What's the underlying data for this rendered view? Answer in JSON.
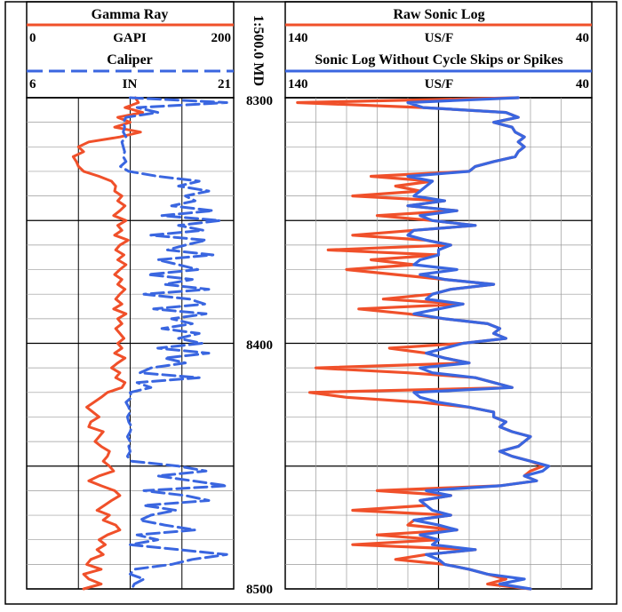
{
  "colors": {
    "gamma": "#f0502a",
    "caliper": "#3a66e0",
    "raw_sonic": "#f0502a",
    "clean_sonic": "#3a66e0",
    "grid_major": "#000000",
    "grid_minor": "#9a9a9a",
    "frame": "#000000"
  },
  "depth_track": {
    "label": "1:500.0 MD",
    "ticks": [
      "8300",
      "8400",
      "8500"
    ]
  },
  "headers": {
    "left": {
      "curve1": {
        "name": "Gamma Ray",
        "unit": "GAPI",
        "min": "0",
        "max": "200",
        "line_style": "solid"
      },
      "curve2": {
        "name": "Caliper",
        "unit": "IN",
        "min": "6",
        "max": "21",
        "line_style": "dashed"
      }
    },
    "right": {
      "curve1": {
        "name": "Raw Sonic Log",
        "unit": "US/F",
        "min": "140",
        "max": "40",
        "line_style": "solid"
      },
      "curve2": {
        "name": "Sonic Log Without Cycle Skips or Spikes",
        "unit": "US/F",
        "min": "140",
        "max": "40",
        "line_style": "solid"
      }
    }
  },
  "chart_data": [
    {
      "type": "line",
      "track": "left",
      "orientation": "vertical-depth",
      "depth_range": [
        8300,
        8500
      ],
      "grid": true,
      "series": [
        {
          "name": "Gamma Ray",
          "unit": "GAPI",
          "scale": [
            0,
            200
          ],
          "depth": [
            8300,
            8302,
            8304,
            8306,
            8308,
            8310,
            8312,
            8314,
            8316,
            8318,
            8320,
            8322,
            8324,
            8326,
            8328,
            8330,
            8332,
            8334,
            8336,
            8338,
            8340,
            8342,
            8344,
            8346,
            8348,
            8350,
            8352,
            8354,
            8356,
            8358,
            8360,
            8362,
            8364,
            8366,
            8368,
            8370,
            8372,
            8374,
            8376,
            8378,
            8380,
            8382,
            8384,
            8386,
            8388,
            8390,
            8392,
            8394,
            8396,
            8398,
            8400,
            8402,
            8404,
            8406,
            8408,
            8410,
            8412,
            8414,
            8416,
            8418,
            8420,
            8422,
            8424,
            8426,
            8428,
            8430,
            8432,
            8434,
            8436,
            8438,
            8440,
            8442,
            8444,
            8446,
            8448,
            8450,
            8452,
            8454,
            8456,
            8458,
            8460,
            8462,
            8464,
            8466,
            8468,
            8470,
            8472,
            8474,
            8476,
            8478,
            8480,
            8482,
            8484,
            8486,
            8488,
            8490,
            8492,
            8494,
            8496,
            8498,
            8500
          ],
          "values": [
            105,
            108,
            95,
            112,
            88,
            100,
            85,
            110,
            90,
            60,
            50,
            55,
            45,
            48,
            50,
            55,
            70,
            82,
            86,
            85,
            92,
            88,
            95,
            90,
            84,
            96,
            88,
            92,
            85,
            98,
            90,
            86,
            94,
            88,
            96,
            90,
            85,
            92,
            88,
            95,
            90,
            86,
            92,
            84,
            96,
            88,
            92,
            86,
            90,
            94,
            88,
            92,
            85,
            95,
            88,
            82,
            90,
            86,
            95,
            92,
            78,
            72,
            65,
            58,
            64,
            70,
            62,
            60,
            74,
            70,
            66,
            72,
            80,
            78,
            74,
            80,
            84,
            70,
            60,
            72,
            85,
            90,
            82,
            75,
            68,
            80,
            74,
            86,
            90,
            78,
            70,
            76,
            68,
            74,
            62,
            58,
            72,
            55,
            60,
            72,
            55
          ]
        },
        {
          "name": "Caliper",
          "unit": "IN",
          "scale": [
            6,
            21
          ],
          "depth": [
            8300,
            8302,
            8304,
            8306,
            8308,
            8310,
            8312,
            8314,
            8316,
            8318,
            8320,
            8322,
            8324,
            8326,
            8328,
            8330,
            8332,
            8334,
            8336,
            8338,
            8340,
            8342,
            8344,
            8346,
            8348,
            8350,
            8352,
            8354,
            8356,
            8358,
            8360,
            8362,
            8364,
            8366,
            8368,
            8370,
            8372,
            8374,
            8376,
            8378,
            8380,
            8382,
            8384,
            8386,
            8388,
            8390,
            8392,
            8394,
            8396,
            8398,
            8400,
            8402,
            8404,
            8406,
            8408,
            8410,
            8412,
            8414,
            8416,
            8418,
            8420,
            8422,
            8424,
            8426,
            8428,
            8430,
            8432,
            8434,
            8436,
            8438,
            8440,
            8442,
            8444,
            8446,
            8448,
            8450,
            8452,
            8454,
            8456,
            8458,
            8460,
            8462,
            8464,
            8466,
            8468,
            8470,
            8472,
            8474,
            8476,
            8478,
            8480,
            8482,
            8484,
            8486,
            8488,
            8490,
            8492,
            8494,
            8496,
            8498,
            8500
          ],
          "values": [
            13.5,
            20.5,
            14,
            15.5,
            13.2,
            13,
            13.1,
            13,
            13.2,
            12.9,
            13,
            13.1,
            13,
            13.2,
            12.8,
            13.4,
            15.5,
            18.5,
            17,
            19.2,
            17.5,
            18.2,
            16.5,
            19.5,
            15.8,
            20,
            17,
            18.8,
            15,
            19,
            17.5,
            16.2,
            19.5,
            15.5,
            17,
            18.4,
            14.8,
            18,
            16,
            19.2,
            14.5,
            17.8,
            18.9,
            15.2,
            19,
            16.5,
            18,
            15.8,
            18.5,
            17,
            18.7,
            15.5,
            19.2,
            16,
            17.5,
            15,
            14.2,
            18.5,
            14,
            15,
            13.5,
            13.6,
            13.2,
            13.4,
            13.5,
            13.3,
            13.4,
            13.6,
            13.5,
            13.3,
            13.5,
            13.4,
            13.5,
            13.3,
            13.6,
            17,
            19,
            15.5,
            18,
            20.5,
            14.5,
            17.5,
            19.2,
            14.5,
            16.8,
            15,
            14.2,
            16,
            18.2,
            14,
            15.5,
            13.5,
            17,
            20.5,
            18,
            16.5,
            13.8,
            13.5,
            14.5,
            13.8,
            13.6
          ]
        }
      ]
    },
    {
      "type": "line",
      "track": "right",
      "orientation": "vertical-depth",
      "depth_range": [
        8300,
        8500
      ],
      "grid": true,
      "series": [
        {
          "name": "Raw Sonic Log",
          "unit": "US/F",
          "scale": [
            140,
            40
          ],
          "depth": [
            8300,
            8302,
            8304,
            8306,
            8308,
            8310,
            8312,
            8314,
            8316,
            8318,
            8320,
            8322,
            8324,
            8326,
            8328,
            8330,
            8332,
            8334,
            8336,
            8338,
            8340,
            8342,
            8344,
            8346,
            8348,
            8350,
            8352,
            8354,
            8356,
            8358,
            8360,
            8362,
            8364,
            8366,
            8368,
            8370,
            8372,
            8374,
            8376,
            8378,
            8380,
            8382,
            8384,
            8386,
            8388,
            8390,
            8392,
            8394,
            8396,
            8398,
            8400,
            8402,
            8404,
            8406,
            8408,
            8410,
            8412,
            8414,
            8416,
            8418,
            8420,
            8422,
            8424,
            8426,
            8428,
            8430,
            8432,
            8434,
            8436,
            8438,
            8440,
            8442,
            8444,
            8446,
            8448,
            8450,
            8452,
            8454,
            8456,
            8458,
            8460,
            8462,
            8464,
            8466,
            8468,
            8470,
            8472,
            8474,
            8476,
            8478,
            8480,
            8482,
            8484,
            8486,
            8488,
            8490,
            8492,
            8494,
            8496,
            8498,
            8500
          ],
          "values": [
            64,
            136,
            95,
            68,
            64,
            72,
            66,
            65,
            62,
            64,
            62,
            64,
            65,
            72,
            78,
            80,
            112,
            92,
            104,
            96,
            118,
            88,
            100,
            84,
            110,
            92,
            78,
            98,
            118,
            94,
            86,
            126,
            90,
            112,
            98,
            120,
            104,
            88,
            72,
            86,
            92,
            108,
            82,
            116,
            100,
            88,
            74,
            70,
            72,
            68,
            82,
            106,
            94,
            88,
            80,
            130,
            100,
            78,
            72,
            66,
            132,
            120,
            96,
            80,
            72,
            72,
            68,
            70,
            66,
            60,
            62,
            64,
            70,
            66,
            60,
            56,
            60,
            62,
            58,
            70,
            110,
            86,
            96,
            94,
            118,
            86,
            98,
            100,
            84,
            110,
            90,
            118,
            78,
            94,
            104,
            88,
            80,
            74,
            68,
            74,
            60
          ]
        },
        {
          "name": "Sonic Log Without Cycle Skips or Spikes",
          "unit": "US/F",
          "scale": [
            140,
            40
          ],
          "depth": [
            8300,
            8302,
            8304,
            8306,
            8308,
            8310,
            8312,
            8314,
            8316,
            8318,
            8320,
            8322,
            8324,
            8326,
            8328,
            8330,
            8332,
            8334,
            8336,
            8338,
            8340,
            8342,
            8344,
            8346,
            8348,
            8350,
            8352,
            8354,
            8356,
            8358,
            8360,
            8362,
            8364,
            8366,
            8368,
            8370,
            8372,
            8374,
            8376,
            8378,
            8380,
            8382,
            8384,
            8386,
            8388,
            8390,
            8392,
            8394,
            8396,
            8398,
            8400,
            8402,
            8404,
            8406,
            8408,
            8410,
            8412,
            8414,
            8416,
            8418,
            8420,
            8422,
            8424,
            8426,
            8428,
            8430,
            8432,
            8434,
            8436,
            8438,
            8440,
            8442,
            8444,
            8446,
            8448,
            8450,
            8452,
            8454,
            8456,
            8458,
            8460,
            8462,
            8464,
            8466,
            8468,
            8470,
            8472,
            8474,
            8476,
            8478,
            8480,
            8482,
            8484,
            8486,
            8488,
            8490,
            8492,
            8494,
            8496,
            8498,
            8500
          ],
          "values": [
            64,
            100,
            95,
            68,
            64,
            72,
            66,
            65,
            62,
            64,
            62,
            64,
            65,
            72,
            78,
            80,
            100,
            92,
            94,
            96,
            98,
            88,
            100,
            84,
            96,
            92,
            78,
            98,
            100,
            94,
            86,
            90,
            90,
            96,
            98,
            84,
            96,
            88,
            72,
            86,
            92,
            94,
            82,
            90,
            98,
            88,
            74,
            70,
            72,
            68,
            82,
            88,
            94,
            88,
            80,
            96,
            92,
            78,
            72,
            66,
            98,
            96,
            90,
            80,
            72,
            72,
            68,
            70,
            66,
            60,
            62,
            64,
            70,
            66,
            60,
            54,
            56,
            62,
            58,
            70,
            94,
            86,
            96,
            94,
            92,
            86,
            98,
            90,
            84,
            96,
            90,
            92,
            78,
            94,
            90,
            88,
            80,
            74,
            62,
            70,
            60
          ]
        }
      ]
    }
  ]
}
